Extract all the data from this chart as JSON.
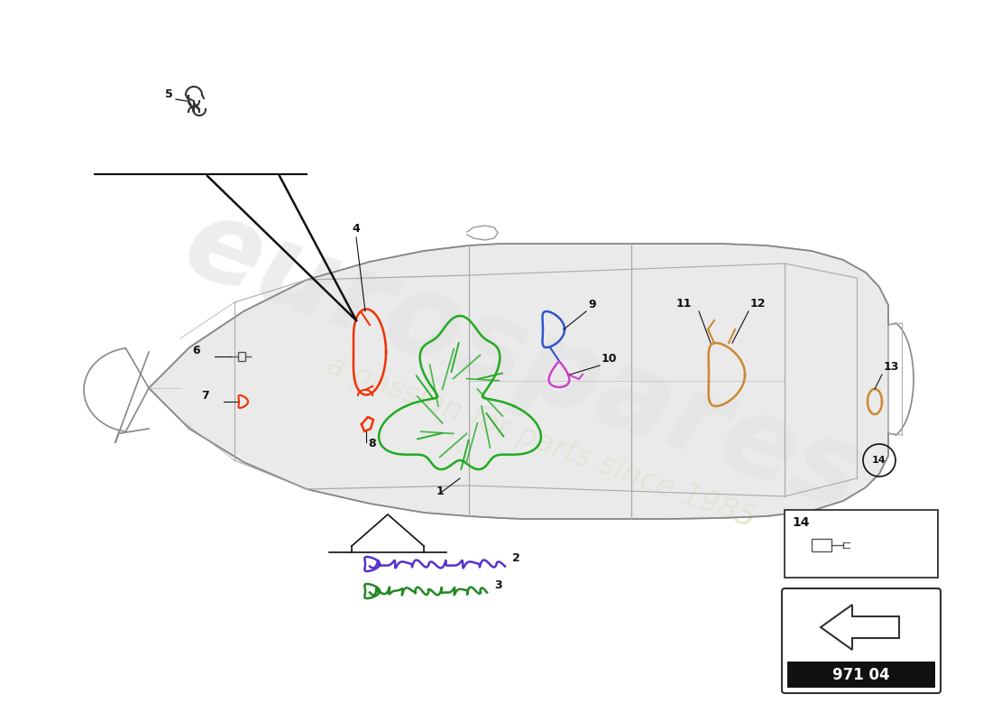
{
  "background_color": "#ffffff",
  "watermark_text1": "eurospares",
  "watermark_text2": "a passion for parts since 1985",
  "page_number": "971 04",
  "car_color": "#d8d8d8",
  "car_edge_color": "#888888",
  "label_color": "#111111",
  "label_fontsize": 9,
  "wiring": {
    "4_color": "#ee3300",
    "8_color": "#ee3300",
    "7_color": "#ee3300",
    "1_color": "#22aa22",
    "9_color": "#3355cc",
    "10_color": "#cc44cc",
    "11_12_color": "#cc8833",
    "13_color": "#cc8833",
    "2_color": "#5533cc",
    "3_color": "#228822"
  },
  "nav_box_color": "#000000",
  "nav_box_inner": "#ffffff",
  "part14_box_color": "#ffffff"
}
